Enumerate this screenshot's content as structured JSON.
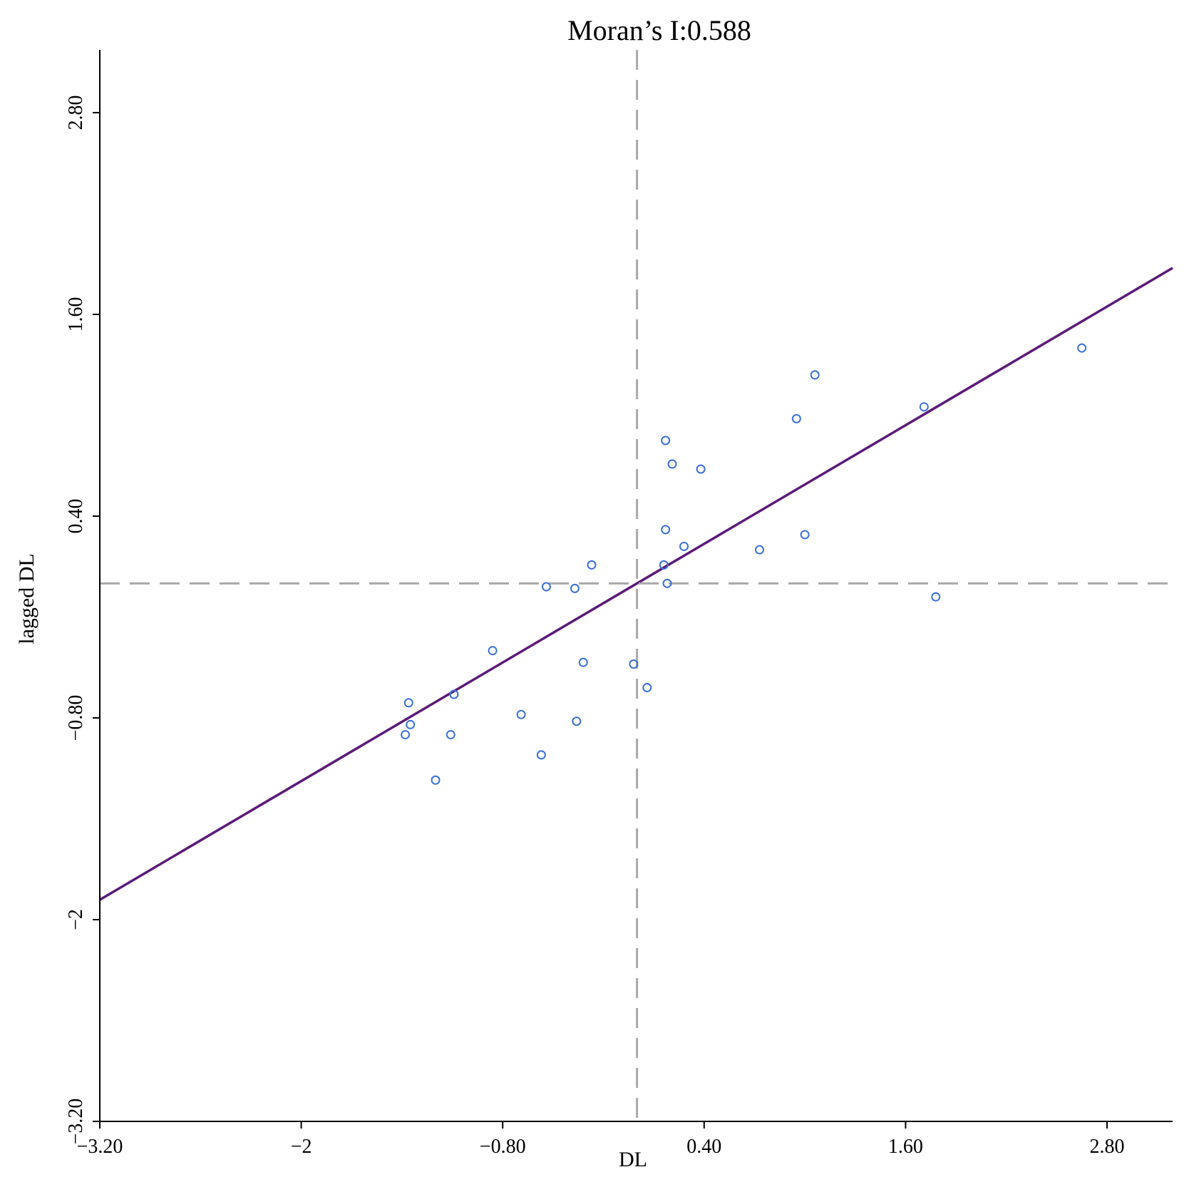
{
  "chart_data": {
    "type": "scatter",
    "title": "Moran’s I:0.588",
    "xlabel": "DL",
    "ylabel": "lagged DL",
    "xlim": [
      -3.2,
      3.2
    ],
    "ylim": [
      -3.2,
      3.2
    ],
    "x_ticks": [
      -3.2,
      -2,
      -0.8,
      0.4,
      1.6,
      2.8
    ],
    "x_tick_labels": [
      "−3.20",
      "−2",
      "−0.80",
      "0.40",
      "1.60",
      "2.80"
    ],
    "y_ticks": [
      -3.2,
      -2,
      -0.8,
      0.4,
      1.6,
      2.8
    ],
    "y_tick_labels": [
      "−3.20",
      "−2",
      "−0.80",
      "0.40",
      "1.60",
      "2.80"
    ],
    "grid": false,
    "mean_x": 0,
    "mean_y": 0,
    "regression": {
      "slope": 0.588,
      "intercept": 0
    },
    "points": [
      {
        "x": -1.36,
        "y": -0.71
      },
      {
        "x": -1.35,
        "y": -0.84
      },
      {
        "x": -1.38,
        "y": -0.9
      },
      {
        "x": -1.2,
        "y": -1.17
      },
      {
        "x": -1.09,
        "y": -0.66
      },
      {
        "x": -1.11,
        "y": -0.9
      },
      {
        "x": -0.86,
        "y": -0.4
      },
      {
        "x": -0.69,
        "y": -0.78
      },
      {
        "x": -0.57,
        "y": -1.02
      },
      {
        "x": -0.54,
        "y": -0.02
      },
      {
        "x": -0.37,
        "y": -0.03
      },
      {
        "x": -0.36,
        "y": -0.82
      },
      {
        "x": -0.32,
        "y": -0.47
      },
      {
        "x": -0.27,
        "y": 0.11
      },
      {
        "x": -0.02,
        "y": -0.48
      },
      {
        "x": 0.06,
        "y": -0.62
      },
      {
        "x": 0.16,
        "y": 0.11
      },
      {
        "x": 0.17,
        "y": 0.32
      },
      {
        "x": 0.18,
        "y": 0.0
      },
      {
        "x": 0.17,
        "y": 0.85
      },
      {
        "x": 0.21,
        "y": 0.71
      },
      {
        "x": 0.28,
        "y": 0.22
      },
      {
        "x": 0.38,
        "y": 0.68
      },
      {
        "x": 0.73,
        "y": 0.2
      },
      {
        "x": 0.95,
        "y": 0.98
      },
      {
        "x": 1.0,
        "y": 0.29
      },
      {
        "x": 1.06,
        "y": 1.24
      },
      {
        "x": 1.71,
        "y": 1.05
      },
      {
        "x": 1.78,
        "y": -0.08
      },
      {
        "x": 2.65,
        "y": 1.4
      }
    ],
    "colors": {
      "points": "#3a6fd8",
      "fit_line": "#5b1a78",
      "ref_lines": "#a9a9a9",
      "axes": "#000000"
    }
  }
}
